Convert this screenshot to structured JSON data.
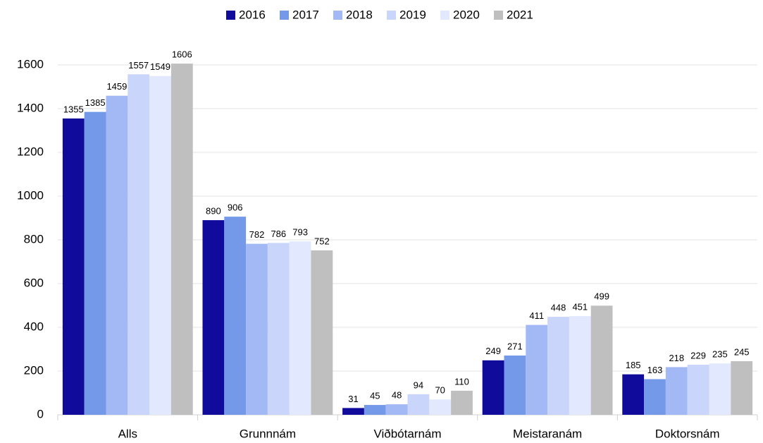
{
  "chart_data": {
    "type": "bar",
    "categories": [
      "Alls",
      "Grunnnám",
      "Viðbótarnám",
      "Meistaranám",
      "Doktorsnám"
    ],
    "series": [
      {
        "name": "2016",
        "color": "#110b9c",
        "values": [
          1355,
          890,
          31,
          249,
          185
        ]
      },
      {
        "name": "2017",
        "color": "#7399e8",
        "values": [
          1385,
          906,
          45,
          271,
          163
        ]
      },
      {
        "name": "2018",
        "color": "#a3b9f5",
        "values": [
          1459,
          782,
          48,
          411,
          218
        ]
      },
      {
        "name": "2019",
        "color": "#c9d5fb",
        "values": [
          1557,
          786,
          94,
          448,
          229
        ]
      },
      {
        "name": "2020",
        "color": "#e2e8fd",
        "values": [
          1549,
          793,
          70,
          451,
          235
        ]
      },
      {
        "name": "2021",
        "color": "#bfbfbf",
        "values": [
          1606,
          752,
          110,
          499,
          245
        ]
      }
    ],
    "ylim": [
      0,
      1600
    ],
    "yticks": [
      0,
      200,
      400,
      600,
      800,
      1000,
      1200,
      1400,
      1600
    ],
    "grid": true,
    "legend": "top"
  }
}
